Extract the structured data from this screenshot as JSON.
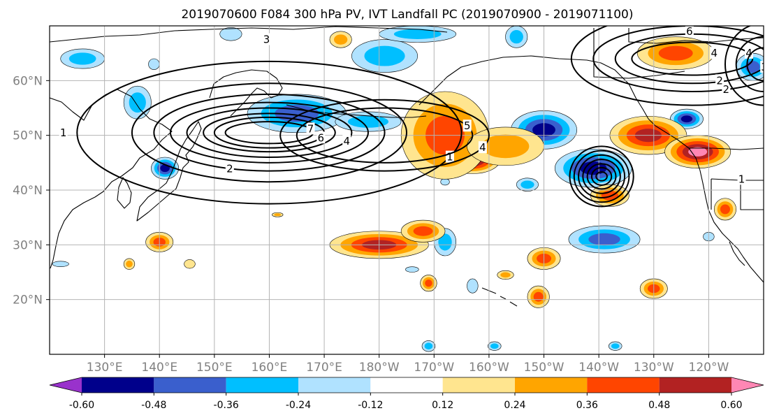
{
  "chart_data": {
    "type": "heatmap",
    "title": "2019070600 F084 300 hPa PV, IVT Landfall PC (2019070900 - 2019071100)",
    "xlabel": "",
    "ylabel": "",
    "xlim": [
      120,
      250
    ],
    "ylim": [
      10,
      70
    ],
    "grid": true,
    "x_ticks": [
      {
        "lon": 130,
        "label": "130°E"
      },
      {
        "lon": 140,
        "label": "140°E"
      },
      {
        "lon": 150,
        "label": "150°E"
      },
      {
        "lon": 160,
        "label": "160°E"
      },
      {
        "lon": 170,
        "label": "170°E"
      },
      {
        "lon": 180,
        "label": "180°W"
      },
      {
        "lon": 190,
        "label": "170°W"
      },
      {
        "lon": 200,
        "label": "160°W"
      },
      {
        "lon": 210,
        "label": "150°W"
      },
      {
        "lon": 220,
        "label": "140°W"
      },
      {
        "lon": 230,
        "label": "130°W"
      },
      {
        "lon": 240,
        "label": "120°W"
      }
    ],
    "y_ticks": [
      {
        "lat": 20,
        "label": "20°N"
      },
      {
        "lat": 30,
        "label": "30°N"
      },
      {
        "lat": 40,
        "label": "40°N"
      },
      {
        "lat": 50,
        "label": "50°N"
      },
      {
        "lat": 60,
        "label": "60°N"
      }
    ],
    "colorbar": {
      "levels": [
        "-0.60",
        "-0.48",
        "-0.36",
        "-0.24",
        "-0.12",
        "0.12",
        "0.24",
        "0.36",
        "0.48",
        "0.60"
      ],
      "colors": [
        "#9932cc",
        "#00008b",
        "#3a5fcd",
        "#00bfff",
        "#b0e2ff",
        "#ffffff",
        "#ffe58f",
        "#ffa500",
        "#ff4500",
        "#b22222",
        "#ff87b4"
      ],
      "extend": "both"
    },
    "shading": [
      {
        "lon": 126,
        "lat": 64,
        "rx": 4,
        "ry": 1.8,
        "v": -0.3
      },
      {
        "lon": 136,
        "lat": 56,
        "rx": 2.5,
        "ry": 3,
        "v": -0.35
      },
      {
        "lon": 139,
        "lat": 63,
        "rx": 1,
        "ry": 1,
        "v": -0.2
      },
      {
        "lon": 141,
        "lat": 44,
        "rx": 2.5,
        "ry": 2,
        "v": -0.5
      },
      {
        "lon": 153,
        "lat": 68.5,
        "rx": 2,
        "ry": 1.2,
        "v": -0.2
      },
      {
        "lon": 165,
        "lat": 54,
        "rx": 9,
        "ry": 3.5,
        "v": -0.42
      },
      {
        "lon": 178,
        "lat": 52.5,
        "rx": 6,
        "ry": 1.8,
        "v": -0.3
      },
      {
        "lon": 181,
        "lat": 64.5,
        "rx": 6,
        "ry": 3,
        "v": -0.35
      },
      {
        "lon": 187,
        "lat": 68.5,
        "rx": 7,
        "ry": 1.5,
        "v": -0.3
      },
      {
        "lon": 205,
        "lat": 68,
        "rx": 2,
        "ry": 2,
        "v": -0.35
      },
      {
        "lon": 210,
        "lat": 51,
        "rx": 6,
        "ry": 3.5,
        "v": -0.55
      },
      {
        "lon": 219,
        "lat": 44,
        "rx": 7,
        "ry": 3.5,
        "v": -0.58
      },
      {
        "lon": 207,
        "lat": 41,
        "rx": 2,
        "ry": 1.2,
        "v": -0.3
      },
      {
        "lon": 192,
        "lat": 41.5,
        "rx": 0.8,
        "ry": 0.6,
        "v": -0.15
      },
      {
        "lon": 236,
        "lat": 53,
        "rx": 3,
        "ry": 1.8,
        "v": -0.48
      },
      {
        "lon": 248,
        "lat": 62.5,
        "rx": 3,
        "ry": 2.5,
        "v": -0.4
      },
      {
        "lon": 192,
        "lat": 30.5,
        "rx": 2,
        "ry": 2.5,
        "v": -0.35
      },
      {
        "lon": 221,
        "lat": 31,
        "rx": 6.5,
        "ry": 2.5,
        "v": -0.42
      },
      {
        "lon": 240,
        "lat": 31.5,
        "rx": 1,
        "ry": 0.8,
        "v": -0.2
      },
      {
        "lon": 197,
        "lat": 22.5,
        "rx": 1,
        "ry": 1.3,
        "v": -0.2
      },
      {
        "lon": 189,
        "lat": 11.5,
        "rx": 1.2,
        "ry": 1,
        "v": -0.25
      },
      {
        "lon": 201,
        "lat": 11.5,
        "rx": 1.2,
        "ry": 0.8,
        "v": -0.25
      },
      {
        "lon": 223,
        "lat": 11.5,
        "rx": 1.2,
        "ry": 0.8,
        "v": -0.25
      },
      {
        "lon": 122,
        "lat": 26.5,
        "rx": 1.5,
        "ry": 0.5,
        "v": -0.2
      },
      {
        "lon": 186,
        "lat": 25.5,
        "rx": 1.2,
        "ry": 0.5,
        "v": -0.2
      },
      {
        "lon": 197,
        "lat": 45.5,
        "rx": 5,
        "ry": 2.5,
        "v": 0.62
      },
      {
        "lon": 192,
        "lat": 50,
        "rx": 8,
        "ry": 8,
        "v": 0.45
      },
      {
        "lon": 203,
        "lat": 48,
        "rx": 7,
        "ry": 3.5,
        "v": 0.3
      },
      {
        "lon": 229,
        "lat": 50,
        "rx": 7,
        "ry": 3.5,
        "v": 0.5
      },
      {
        "lon": 238,
        "lat": 47,
        "rx": 6,
        "ry": 3,
        "v": 0.62
      },
      {
        "lon": 234,
        "lat": 65,
        "rx": 7,
        "ry": 3,
        "v": 0.42
      },
      {
        "lon": 173,
        "lat": 67.5,
        "rx": 2,
        "ry": 1.5,
        "v": 0.3
      },
      {
        "lon": 180,
        "lat": 30,
        "rx": 9,
        "ry": 2.5,
        "v": 0.48
      },
      {
        "lon": 188,
        "lat": 32.5,
        "rx": 4,
        "ry": 2,
        "v": 0.4
      },
      {
        "lon": 210,
        "lat": 27.5,
        "rx": 3,
        "ry": 2,
        "v": 0.4
      },
      {
        "lon": 189,
        "lat": 23,
        "rx": 1.5,
        "ry": 1.5,
        "v": 0.38
      },
      {
        "lon": 209,
        "lat": 20.5,
        "rx": 2,
        "ry": 2,
        "v": 0.38
      },
      {
        "lon": 230,
        "lat": 22,
        "rx": 2.5,
        "ry": 1.8,
        "v": 0.38
      },
      {
        "lon": 140,
        "lat": 30.5,
        "rx": 2.5,
        "ry": 1.8,
        "v": 0.4
      },
      {
        "lon": 134.5,
        "lat": 26.5,
        "rx": 1,
        "ry": 1,
        "v": 0.3
      },
      {
        "lon": 145.5,
        "lat": 26.5,
        "rx": 1,
        "ry": 0.8,
        "v": 0.2
      },
      {
        "lon": 161.5,
        "lat": 35.5,
        "rx": 1,
        "ry": 0.4,
        "v": 0.3
      },
      {
        "lon": 222,
        "lat": 39,
        "rx": 3.5,
        "ry": 2,
        "v": 0.38
      },
      {
        "lon": 203,
        "lat": 24.5,
        "rx": 1.5,
        "ry": 0.8,
        "v": 0.3
      },
      {
        "lon": 243,
        "lat": 36.5,
        "rx": 2,
        "ry": 2,
        "v": 0.4
      }
    ],
    "ivt_pc_contours": [
      {
        "center": [
          160,
          50.5
        ],
        "levels": [
          {
            "rx": 8,
            "ry": 2,
            "label": "7"
          },
          {
            "rx": 10,
            "ry": 2.8,
            "label": "6"
          },
          {
            "rx": 12,
            "ry": 3.5
          },
          {
            "rx": 15,
            "ry": 4.5,
            "label": "4"
          },
          {
            "rx": 18,
            "ry": 5.5
          },
          {
            "rx": 21,
            "ry": 7,
            "label": "2"
          },
          {
            "rx": 25,
            "ry": 9
          },
          {
            "rx": 35,
            "ry": 13,
            "label": "1"
          }
        ]
      },
      {
        "center": [
          181,
          50
        ],
        "levels": [
          {
            "rx": 16,
            "ry": 5,
            "label": "5"
          },
          {
            "rx": 19,
            "ry": 6.5,
            "label": "4"
          }
        ]
      },
      {
        "center": [
          220.5,
          42.5
        ],
        "levels": [
          {
            "rx": 1,
            "ry": 0.8
          },
          {
            "rx": 1.8,
            "ry": 1.6
          },
          {
            "rx": 2.6,
            "ry": 2.3
          },
          {
            "rx": 3.4,
            "ry": 3.1
          },
          {
            "rx": 4.2,
            "ry": 3.9
          },
          {
            "rx": 5,
            "ry": 4.7
          },
          {
            "rx": 5.8,
            "ry": 5.5
          }
        ]
      },
      {
        "center": [
          237,
          64
        ],
        "levels": [
          {
            "rx": 11,
            "ry": 3,
            "label": "4"
          },
          {
            "rx": 14,
            "ry": 4.5,
            "label": "3"
          },
          {
            "rx": 18,
            "ry": 6,
            "label": "2"
          },
          {
            "rx": 22,
            "ry": 8.5,
            "label": "1"
          }
        ]
      },
      {
        "center": [
          250,
          63
        ],
        "levels": [
          {
            "rx": 3,
            "ry": 3,
            "label": "5"
          },
          {
            "rx": 5,
            "ry": 5,
            "label": "4"
          },
          {
            "rx": 7,
            "ry": 7.5,
            "label": "3"
          }
        ]
      }
    ],
    "extra_contour_labels": [
      {
        "lon": 159.5,
        "lat": 67.5,
        "label": "3"
      },
      {
        "lon": 122.5,
        "lat": 50.5,
        "label": "1"
      },
      {
        "lon": 241,
        "lat": 65,
        "label": "4"
      },
      {
        "lon": 242,
        "lat": 60,
        "label": "2"
      },
      {
        "lon": 246,
        "lat": 42,
        "label": "1"
      },
      {
        "lon": 236.5,
        "lat": 69,
        "label": "6"
      }
    ]
  }
}
